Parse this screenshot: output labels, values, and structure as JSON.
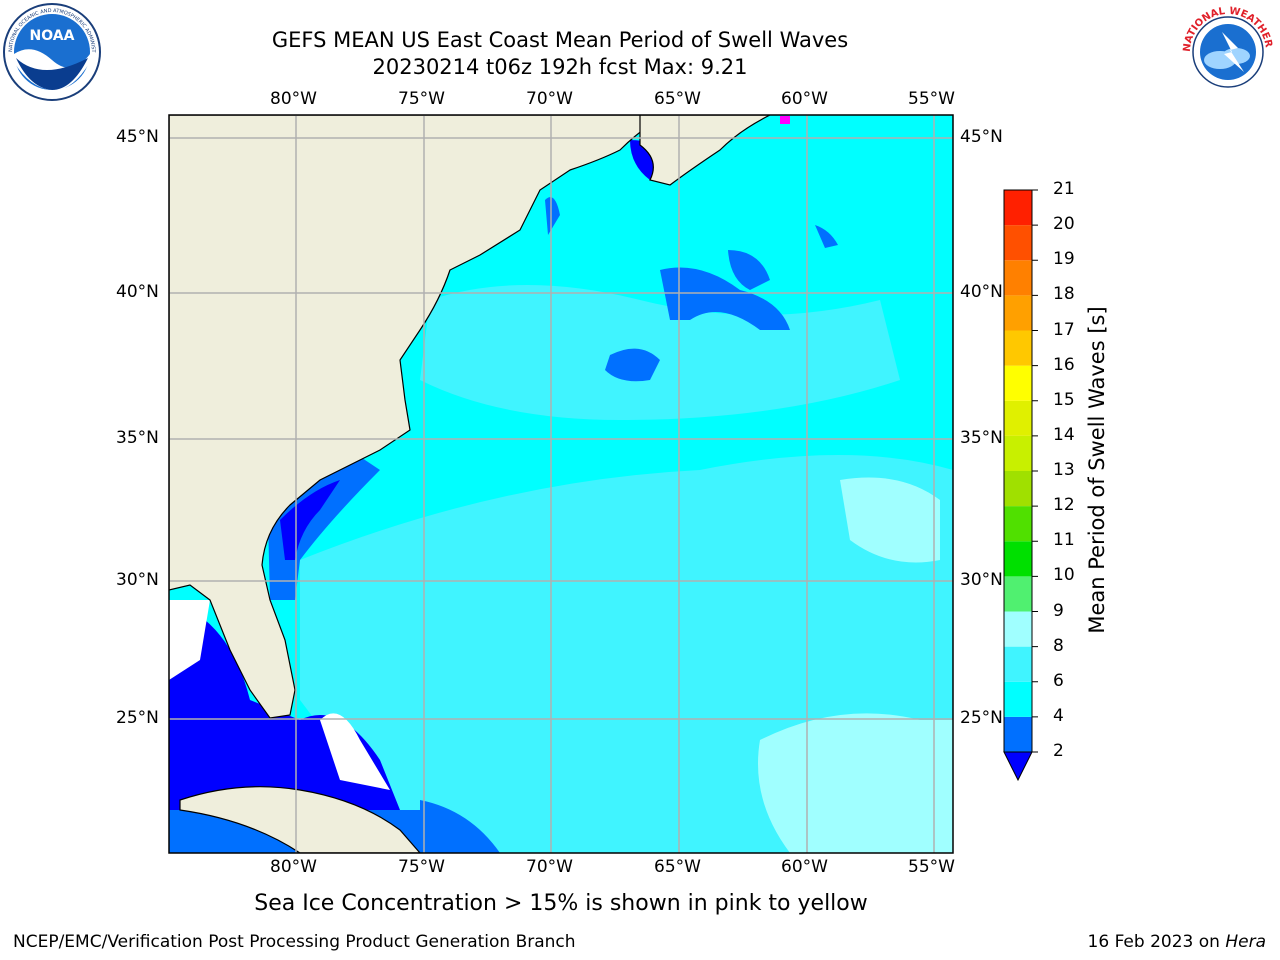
{
  "header": {
    "title_line1": "GEFS MEAN US East Coast Mean Period of Swell Waves",
    "title_line2": "20230214 t06z 192h fcst   Max: 9.21"
  },
  "logos": {
    "left": {
      "text": "NOAA",
      "ring_text": "NATIONAL OCEANIC AND ATMOSPHERIC ADMINISTRATION · U.S. DEPARTMENT OF COMMERCE"
    },
    "right": {
      "ring_text": "NATIONAL WEATHER SERVICE"
    }
  },
  "map": {
    "lon_ticks": [
      "80°W",
      "75°W",
      "70°W",
      "65°W",
      "60°W",
      "55°W"
    ],
    "lat_ticks": [
      "45°N",
      "40°N",
      "35°N",
      "30°N",
      "25°N"
    ],
    "colors": {
      "land": "#efeedc",
      "grid": "#b0b0b0",
      "ice": "#ff00ff"
    }
  },
  "colorbar": {
    "label": "Mean Period of Swell Waves [s]",
    "ticks": [
      "2",
      "4",
      "6",
      "8",
      "9",
      "10",
      "11",
      "12",
      "13",
      "14",
      "15",
      "16",
      "17",
      "18",
      "19",
      "20",
      "21"
    ],
    "colors": [
      "#0000ff",
      "#0070ff",
      "#00ffff",
      "#40f4ff",
      "#a0ffff",
      "#50f070",
      "#00e000",
      "#50e000",
      "#a0e000",
      "#c8f000",
      "#e0f000",
      "#ffff00",
      "#ffc800",
      "#ffa000",
      "#ff8000",
      "#ff5000",
      "#ff2000",
      "#ff0000"
    ]
  },
  "note": "Sea Ice Concentration > 15% is shown in pink to yellow",
  "footer": {
    "left": "NCEP/EMC/Verification Post Processing Product Generation Branch",
    "right_date": "16 Feb 2023 on ",
    "right_machine": "Hera"
  }
}
